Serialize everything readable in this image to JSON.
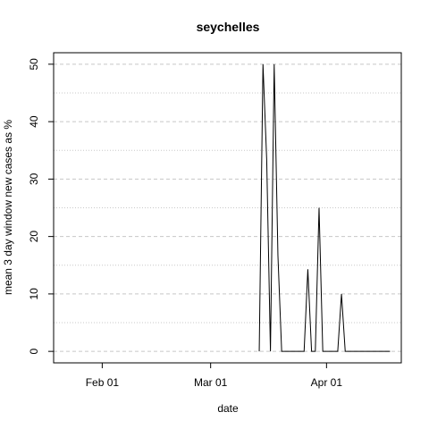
{
  "chart_data": {
    "type": "line",
    "title": "seychelles",
    "xlabel": "date",
    "ylabel": "mean  3  day window new cases as %",
    "x_ticks": [
      {
        "label": "Feb 01",
        "date": "2020-02-01"
      },
      {
        "label": "Mar 01",
        "date": "2020-03-01"
      },
      {
        "label": "Apr 01",
        "date": "2020-04-01"
      }
    ],
    "y_ticks": [
      0,
      10,
      20,
      30,
      40,
      50
    ],
    "xlim": [
      "2020-01-19",
      "2020-04-21"
    ],
    "ylim": [
      -2,
      52
    ],
    "grid": {
      "major_y": [
        0,
        10,
        20,
        30,
        40,
        50
      ],
      "minor_y": [
        5,
        15,
        25,
        35,
        45
      ]
    },
    "line_color": "#000000",
    "grid_color": "#c8c8c8",
    "series": [
      {
        "x": [
          "2020-03-14",
          "2020-03-15",
          "2020-03-16",
          "2020-03-17",
          "2020-03-18",
          "2020-03-19",
          "2020-03-20",
          "2020-03-21",
          "2020-03-22",
          "2020-03-23",
          "2020-03-24",
          "2020-03-25",
          "2020-03-26",
          "2020-03-27",
          "2020-03-28",
          "2020-03-29",
          "2020-03-30",
          "2020-03-31",
          "2020-04-01",
          "2020-04-02",
          "2020-04-03",
          "2020-04-04",
          "2020-04-05",
          "2020-04-06",
          "2020-04-07",
          "2020-04-08",
          "2020-04-09",
          "2020-04-10",
          "2020-04-11",
          "2020-04-12",
          "2020-04-13",
          "2020-04-14",
          "2020-04-15",
          "2020-04-16",
          "2020-04-17",
          "2020-04-18"
        ],
        "y": [
          0,
          50,
          33.3,
          0,
          50,
          16.7,
          0,
          0,
          0,
          0,
          0,
          0,
          0,
          14.3,
          0,
          0,
          25,
          0,
          0,
          0,
          0,
          0,
          10,
          0,
          0,
          0,
          0,
          0,
          0,
          0,
          0,
          0,
          0,
          0,
          0,
          0
        ]
      }
    ]
  }
}
